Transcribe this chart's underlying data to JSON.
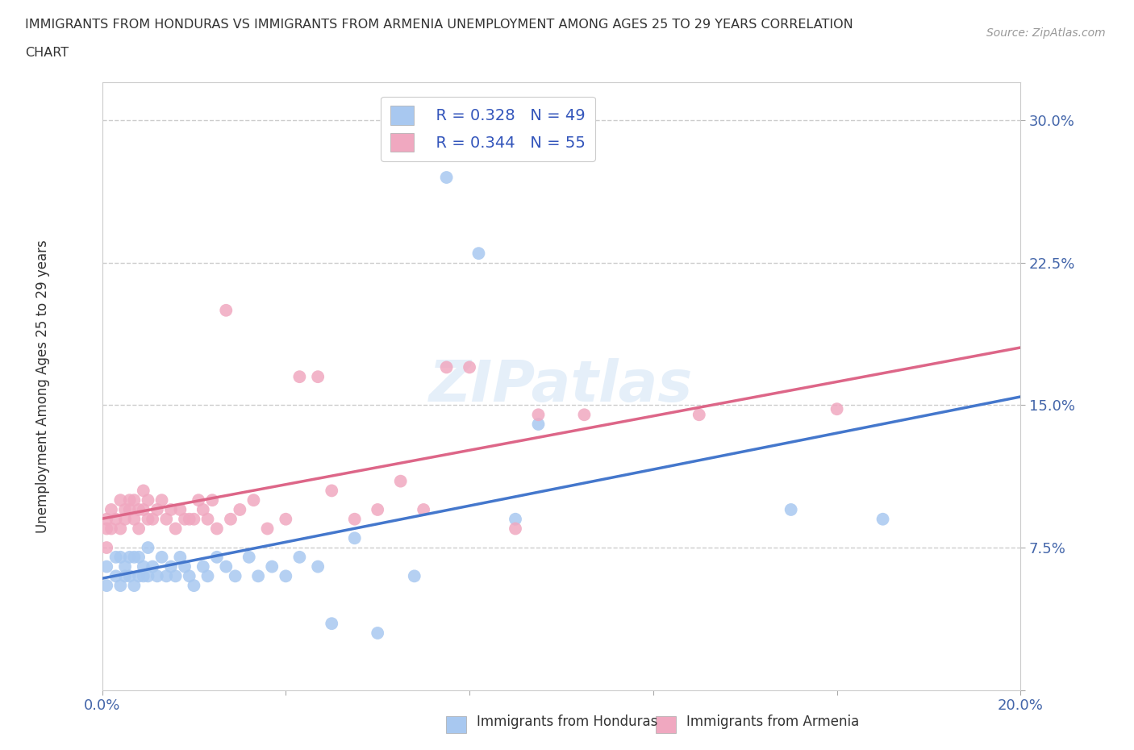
{
  "title_line1": "IMMIGRANTS FROM HONDURAS VS IMMIGRANTS FROM ARMENIA UNEMPLOYMENT AMONG AGES 25 TO 29 YEARS CORRELATION",
  "title_line2": "CHART",
  "source_text": "Source: ZipAtlas.com",
  "ylabel": "Unemployment Among Ages 25 to 29 years",
  "xlim": [
    0.0,
    0.2
  ],
  "ylim": [
    0.0,
    0.32
  ],
  "x_ticks": [
    0.0,
    0.04,
    0.08,
    0.12,
    0.16,
    0.2
  ],
  "y_ticks": [
    0.0,
    0.075,
    0.15,
    0.225,
    0.3
  ],
  "honduras_color": "#a8c8f0",
  "armenia_color": "#f0a8c0",
  "honduras_line_color": "#4477cc",
  "armenia_line_color": "#dd6688",
  "legend_R_honduras": "R = 0.328",
  "legend_N_honduras": "N = 49",
  "legend_R_armenia": "R = 0.344",
  "legend_N_armenia": "N = 55",
  "watermark": "ZIPatlas",
  "grid_color": "#cccccc",
  "honduras_x": [
    0.001,
    0.001,
    0.003,
    0.003,
    0.004,
    0.004,
    0.005,
    0.005,
    0.006,
    0.006,
    0.007,
    0.007,
    0.008,
    0.008,
    0.009,
    0.009,
    0.01,
    0.01,
    0.011,
    0.012,
    0.013,
    0.014,
    0.015,
    0.016,
    0.017,
    0.018,
    0.019,
    0.02,
    0.022,
    0.023,
    0.025,
    0.027,
    0.029,
    0.032,
    0.034,
    0.037,
    0.04,
    0.043,
    0.047,
    0.05,
    0.055,
    0.06,
    0.068,
    0.075,
    0.082,
    0.09,
    0.095,
    0.15,
    0.17
  ],
  "honduras_y": [
    0.055,
    0.065,
    0.06,
    0.07,
    0.055,
    0.07,
    0.06,
    0.065,
    0.06,
    0.07,
    0.055,
    0.07,
    0.06,
    0.07,
    0.06,
    0.065,
    0.06,
    0.075,
    0.065,
    0.06,
    0.07,
    0.06,
    0.065,
    0.06,
    0.07,
    0.065,
    0.06,
    0.055,
    0.065,
    0.06,
    0.07,
    0.065,
    0.06,
    0.07,
    0.06,
    0.065,
    0.06,
    0.07,
    0.065,
    0.035,
    0.08,
    0.03,
    0.06,
    0.27,
    0.23,
    0.09,
    0.14,
    0.095,
    0.09
  ],
  "armenia_x": [
    0.001,
    0.001,
    0.001,
    0.002,
    0.002,
    0.003,
    0.004,
    0.004,
    0.005,
    0.005,
    0.006,
    0.006,
    0.007,
    0.007,
    0.008,
    0.008,
    0.009,
    0.009,
    0.01,
    0.01,
    0.011,
    0.012,
    0.013,
    0.014,
    0.015,
    0.016,
    0.017,
    0.018,
    0.019,
    0.02,
    0.021,
    0.022,
    0.023,
    0.024,
    0.025,
    0.027,
    0.028,
    0.03,
    0.033,
    0.036,
    0.04,
    0.043,
    0.047,
    0.05,
    0.055,
    0.06,
    0.065,
    0.07,
    0.075,
    0.08,
    0.09,
    0.095,
    0.105,
    0.13,
    0.16
  ],
  "armenia_y": [
    0.075,
    0.085,
    0.09,
    0.085,
    0.095,
    0.09,
    0.085,
    0.1,
    0.09,
    0.095,
    0.095,
    0.1,
    0.09,
    0.1,
    0.085,
    0.095,
    0.095,
    0.105,
    0.09,
    0.1,
    0.09,
    0.095,
    0.1,
    0.09,
    0.095,
    0.085,
    0.095,
    0.09,
    0.09,
    0.09,
    0.1,
    0.095,
    0.09,
    0.1,
    0.085,
    0.2,
    0.09,
    0.095,
    0.1,
    0.085,
    0.09,
    0.165,
    0.165,
    0.105,
    0.09,
    0.095,
    0.11,
    0.095,
    0.17,
    0.17,
    0.085,
    0.145,
    0.145,
    0.145,
    0.148
  ]
}
